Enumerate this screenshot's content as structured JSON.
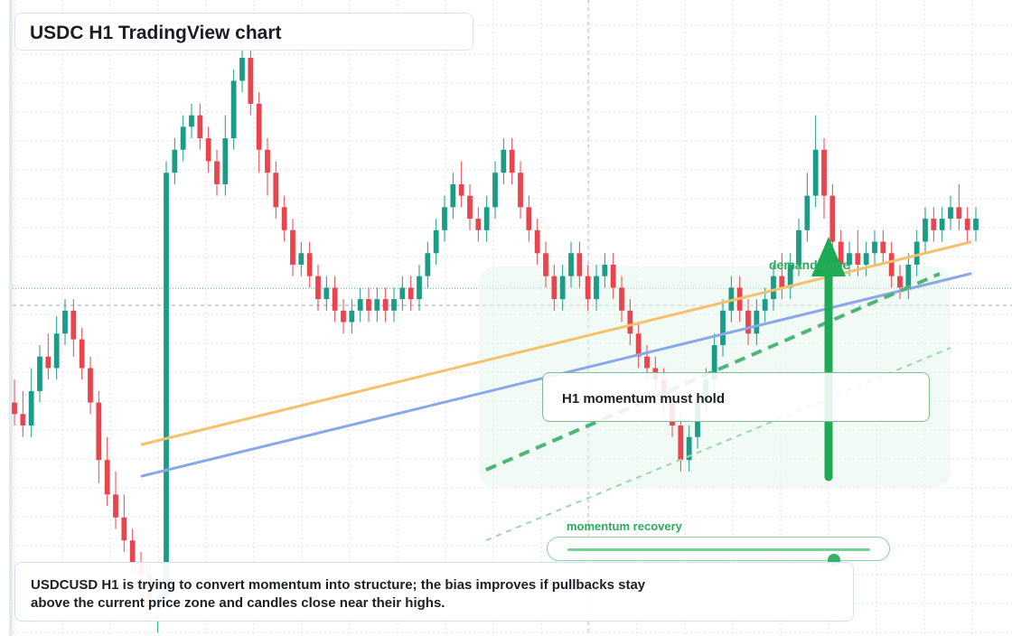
{
  "title": "USDC H1 TradingView chart",
  "note": "USDCUSD H1 is trying to convert momentum into structure; the bias improves if pullbacks stay above the current price zone and candles close near their highs.",
  "callout": "H1 momentum must hold",
  "zone_label": "demand zone",
  "slider": {
    "label": "momentum recovery",
    "value": 0.88
  },
  "colors": {
    "up": "#1a9c86",
    "down": "#e8454f",
    "trend_orange": "#f5c26b",
    "trend_blue": "#8aa8e8",
    "zone_green": "#2daa5a",
    "arrow": "#1fab55"
  },
  "chart_data": {
    "type": "candlestick",
    "timeframe": "H1",
    "ylim": [
      0,
      100
    ],
    "grid": true,
    "candles": [
      [
        40,
        38,
        44,
        36
      ],
      [
        38,
        36,
        42,
        34
      ],
      [
        36,
        42,
        46,
        34
      ],
      [
        42,
        48,
        50,
        40
      ],
      [
        48,
        46,
        52,
        44
      ],
      [
        46,
        52,
        55,
        44
      ],
      [
        52,
        56,
        58,
        50
      ],
      [
        56,
        51,
        58,
        48
      ],
      [
        51,
        46,
        53,
        44
      ],
      [
        46,
        40,
        48,
        38
      ],
      [
        40,
        30,
        42,
        26
      ],
      [
        30,
        24,
        34,
        22
      ],
      [
        24,
        20,
        28,
        18
      ],
      [
        20,
        16,
        24,
        14
      ],
      [
        16,
        12,
        18,
        10
      ],
      [
        12,
        10,
        14,
        8
      ],
      [
        10,
        4,
        12,
        2
      ],
      [
        4,
        6,
        8,
        0
      ],
      [
        6,
        80,
        82,
        4
      ],
      [
        80,
        84,
        86,
        78
      ],
      [
        84,
        88,
        90,
        82
      ],
      [
        88,
        90,
        92,
        86
      ],
      [
        90,
        86,
        92,
        84
      ],
      [
        86,
        82,
        88,
        80
      ],
      [
        82,
        78,
        84,
        76
      ],
      [
        78,
        86,
        90,
        76
      ],
      [
        86,
        96,
        98,
        84
      ],
      [
        96,
        100,
        102,
        94
      ],
      [
        100,
        92,
        102,
        90
      ],
      [
        92,
        84,
        94,
        80
      ],
      [
        84,
        80,
        86,
        76
      ],
      [
        80,
        74,
        82,
        72
      ],
      [
        74,
        70,
        76,
        68
      ],
      [
        70,
        64,
        72,
        62
      ],
      [
        64,
        66,
        68,
        62
      ],
      [
        66,
        62,
        68,
        60
      ],
      [
        62,
        58,
        64,
        56
      ],
      [
        58,
        60,
        62,
        56
      ],
      [
        60,
        56,
        62,
        54
      ],
      [
        56,
        54,
        58,
        52
      ],
      [
        54,
        56,
        58,
        52
      ],
      [
        56,
        58,
        60,
        54
      ],
      [
        58,
        56,
        60,
        54
      ],
      [
        56,
        58,
        60,
        54
      ],
      [
        58,
        56,
        60,
        54
      ],
      [
        56,
        58,
        60,
        54
      ],
      [
        58,
        60,
        62,
        56
      ],
      [
        60,
        58,
        62,
        56
      ],
      [
        58,
        62,
        64,
        56
      ],
      [
        62,
        66,
        68,
        60
      ],
      [
        66,
        70,
        72,
        64
      ],
      [
        70,
        74,
        76,
        68
      ],
      [
        74,
        78,
        80,
        72
      ],
      [
        78,
        76,
        82,
        74
      ],
      [
        76,
        72,
        78,
        70
      ],
      [
        72,
        70,
        74,
        68
      ],
      [
        70,
        74,
        76,
        68
      ],
      [
        74,
        80,
        82,
        72
      ],
      [
        80,
        84,
        86,
        78
      ],
      [
        84,
        80,
        86,
        78
      ],
      [
        80,
        74,
        82,
        72
      ],
      [
        74,
        70,
        76,
        68
      ],
      [
        70,
        66,
        72,
        64
      ],
      [
        66,
        62,
        68,
        60
      ],
      [
        62,
        58,
        64,
        56
      ],
      [
        58,
        62,
        64,
        56
      ],
      [
        62,
        66,
        68,
        60
      ],
      [
        66,
        62,
        68,
        60
      ],
      [
        62,
        58,
        64,
        56
      ],
      [
        58,
        62,
        64,
        56
      ],
      [
        62,
        64,
        66,
        60
      ],
      [
        64,
        60,
        66,
        58
      ],
      [
        60,
        56,
        62,
        54
      ],
      [
        56,
        52,
        58,
        50
      ],
      [
        52,
        48,
        54,
        46
      ],
      [
        48,
        46,
        50,
        44
      ],
      [
        46,
        44,
        48,
        42
      ],
      [
        44,
        40,
        46,
        38
      ],
      [
        40,
        36,
        42,
        34
      ],
      [
        36,
        30,
        38,
        28
      ],
      [
        30,
        34,
        36,
        28
      ],
      [
        34,
        40,
        42,
        32
      ],
      [
        40,
        44,
        46,
        38
      ],
      [
        44,
        50,
        52,
        42
      ],
      [
        50,
        56,
        58,
        48
      ],
      [
        56,
        60,
        62,
        54
      ],
      [
        60,
        56,
        62,
        54
      ],
      [
        56,
        52,
        58,
        50
      ],
      [
        52,
        56,
        58,
        50
      ],
      [
        56,
        58,
        60,
        54
      ],
      [
        58,
        62,
        64,
        56
      ],
      [
        62,
        60,
        66,
        58
      ],
      [
        60,
        64,
        66,
        58
      ],
      [
        64,
        70,
        72,
        62
      ],
      [
        70,
        76,
        80,
        68
      ],
      [
        76,
        84,
        90,
        74
      ],
      [
        84,
        76,
        86,
        72
      ],
      [
        76,
        68,
        78,
        66
      ],
      [
        68,
        64,
        70,
        62
      ],
      [
        64,
        66,
        68,
        62
      ],
      [
        66,
        64,
        70,
        62
      ],
      [
        64,
        66,
        68,
        62
      ],
      [
        66,
        68,
        70,
        64
      ],
      [
        68,
        66,
        70,
        64
      ],
      [
        66,
        62,
        68,
        60
      ],
      [
        62,
        60,
        64,
        58
      ],
      [
        60,
        64,
        66,
        58
      ],
      [
        64,
        68,
        70,
        62
      ],
      [
        68,
        72,
        74,
        66
      ],
      [
        72,
        70,
        74,
        68
      ],
      [
        70,
        72,
        74,
        68
      ],
      [
        72,
        74,
        76,
        70
      ],
      [
        74,
        72,
        78,
        70
      ],
      [
        72,
        70,
        74,
        68
      ],
      [
        70,
        72,
        74,
        68
      ]
    ]
  }
}
